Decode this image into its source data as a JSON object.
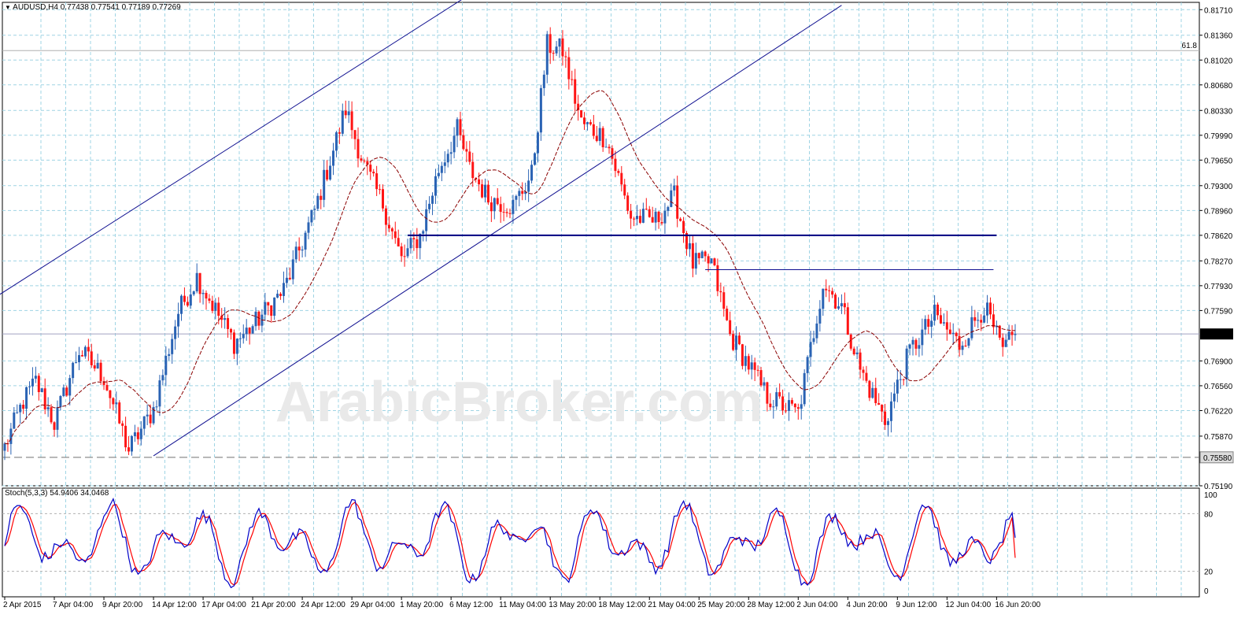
{
  "chart_data": {
    "type": "candlestick",
    "symbol": "AUDUSD,H4",
    "ohlc_header": [
      "0.77438",
      "0.77541",
      "0.77189",
      "0.77269"
    ],
    "watermark": "ArabicBroker.com",
    "colors": {
      "background": "#ffffff",
      "grid": "#9fd4e4",
      "up": "#2a63b4",
      "down": "#ff1414",
      "ma": "#8b0000",
      "channel": "#101090",
      "support": "#000080",
      "stoch_main": "#0000c8",
      "stoch_signal": "#ff0000",
      "current_price_box": "#000000"
    },
    "y_axis": {
      "range": [
        0.7519,
        0.8181
      ],
      "ticks": [
        "0.81710",
        "0.81360",
        "0.81020",
        "0.80680",
        "0.80330",
        "0.79990",
        "0.79650",
        "0.79300",
        "0.78960",
        "0.78620",
        "0.78270",
        "0.77930",
        "0.77590",
        "0.76900",
        "0.76560",
        "0.76220",
        "0.75870",
        "0.75190"
      ],
      "ticks_num": [
        0.8171,
        0.8136,
        0.8102,
        0.8068,
        0.8033,
        0.7999,
        0.7965,
        0.793,
        0.7896,
        0.7862,
        0.7827,
        0.7793,
        0.7759,
        0.769,
        0.7656,
        0.7622,
        0.7587,
        0.7519
      ],
      "current_price": "0.77269",
      "current_price_num": 0.77269,
      "support_label": "0.75580",
      "support_num": 0.7558,
      "fib_label": "61.8",
      "fib_num": 0.8115
    },
    "x_axis": {
      "ticks": [
        "2 Apr 2015",
        "7 Apr 04:00",
        "9 Apr 20:00",
        "14 Apr 12:00",
        "17 Apr 04:00",
        "21 Apr 20:00",
        "24 Apr 12:00",
        "29 Apr 04:00",
        "1 May 20:00",
        "6 May 12:00",
        "11 May 04:00",
        "13 May 20:00",
        "18 May 12:00",
        "21 May 04:00",
        "25 May 20:00",
        "28 May 12:00",
        "2 Jun 04:00",
        "4 Jun 20:00",
        "9 Jun 12:00",
        "12 Jun 04:00",
        "16 Jun 20:00"
      ],
      "bar_index": [
        0,
        16,
        32,
        48,
        64,
        80,
        96,
        112,
        128,
        144,
        160,
        176,
        192,
        208,
        224,
        240,
        256,
        272,
        288,
        304,
        320
      ]
    },
    "series_keypoints": [
      [
        0,
        0.7572
      ],
      [
        6,
        0.7635
      ],
      [
        10,
        0.7662
      ],
      [
        16,
        0.7605
      ],
      [
        24,
        0.7705
      ],
      [
        32,
        0.7668
      ],
      [
        40,
        0.7568
      ],
      [
        48,
        0.7624
      ],
      [
        56,
        0.7757
      ],
      [
        62,
        0.7805
      ],
      [
        74,
        0.7715
      ],
      [
        80,
        0.7738
      ],
      [
        90,
        0.7787
      ],
      [
        100,
        0.7896
      ],
      [
        110,
        0.8035
      ],
      [
        116,
        0.7957
      ],
      [
        122,
        0.7905
      ],
      [
        128,
        0.7828
      ],
      [
        134,
        0.7862
      ],
      [
        140,
        0.7952
      ],
      [
        146,
        0.8006
      ],
      [
        150,
        0.7953
      ],
      [
        156,
        0.7912
      ],
      [
        164,
        0.7902
      ],
      [
        170,
        0.7945
      ],
      [
        175,
        0.8122
      ],
      [
        180,
        0.8115
      ],
      [
        186,
        0.8016
      ],
      [
        194,
        0.7995
      ],
      [
        202,
        0.7887
      ],
      [
        210,
        0.7882
      ],
      [
        216,
        0.7915
      ],
      [
        222,
        0.7823
      ],
      [
        228,
        0.7825
      ],
      [
        234,
        0.7725
      ],
      [
        240,
        0.7685
      ],
      [
        246,
        0.7641
      ],
      [
        256,
        0.7618
      ],
      [
        264,
        0.7797
      ],
      [
        270,
        0.7765
      ],
      [
        276,
        0.7678
      ],
      [
        284,
        0.7608
      ],
      [
        292,
        0.7703
      ],
      [
        300,
        0.7752
      ],
      [
        308,
        0.7712
      ],
      [
        316,
        0.7765
      ],
      [
        322,
        0.7702
      ],
      [
        326,
        0.7727
      ]
    ],
    "bars_total": 327,
    "ma_period": 21,
    "indicators": [
      {
        "name": "Stoch(5,3,3)",
        "label": "Stoch(5,3,3) 54.9406 34.0468",
        "values": [
          54.9406,
          34.0468
        ],
        "y_ticks": [
          "100",
          "80",
          "20",
          "0"
        ],
        "y_ticks_num": [
          100,
          80,
          20,
          0
        ],
        "range": [
          0,
          100
        ]
      }
    ],
    "drawings": {
      "channel_upper": [
        [
          -2,
          0.778
        ],
        [
          156,
          0.8208
        ]
      ],
      "channel_lower": [
        [
          48,
          0.756
        ],
        [
          270,
          0.8177
        ]
      ],
      "support_line": [
        [
          130,
          0.7862
        ],
        [
          320,
          0.7862
        ]
      ],
      "resistance_line": [
        [
          226,
          0.7815
        ],
        [
          319,
          0.7815
        ]
      ]
    },
    "grid": true
  }
}
